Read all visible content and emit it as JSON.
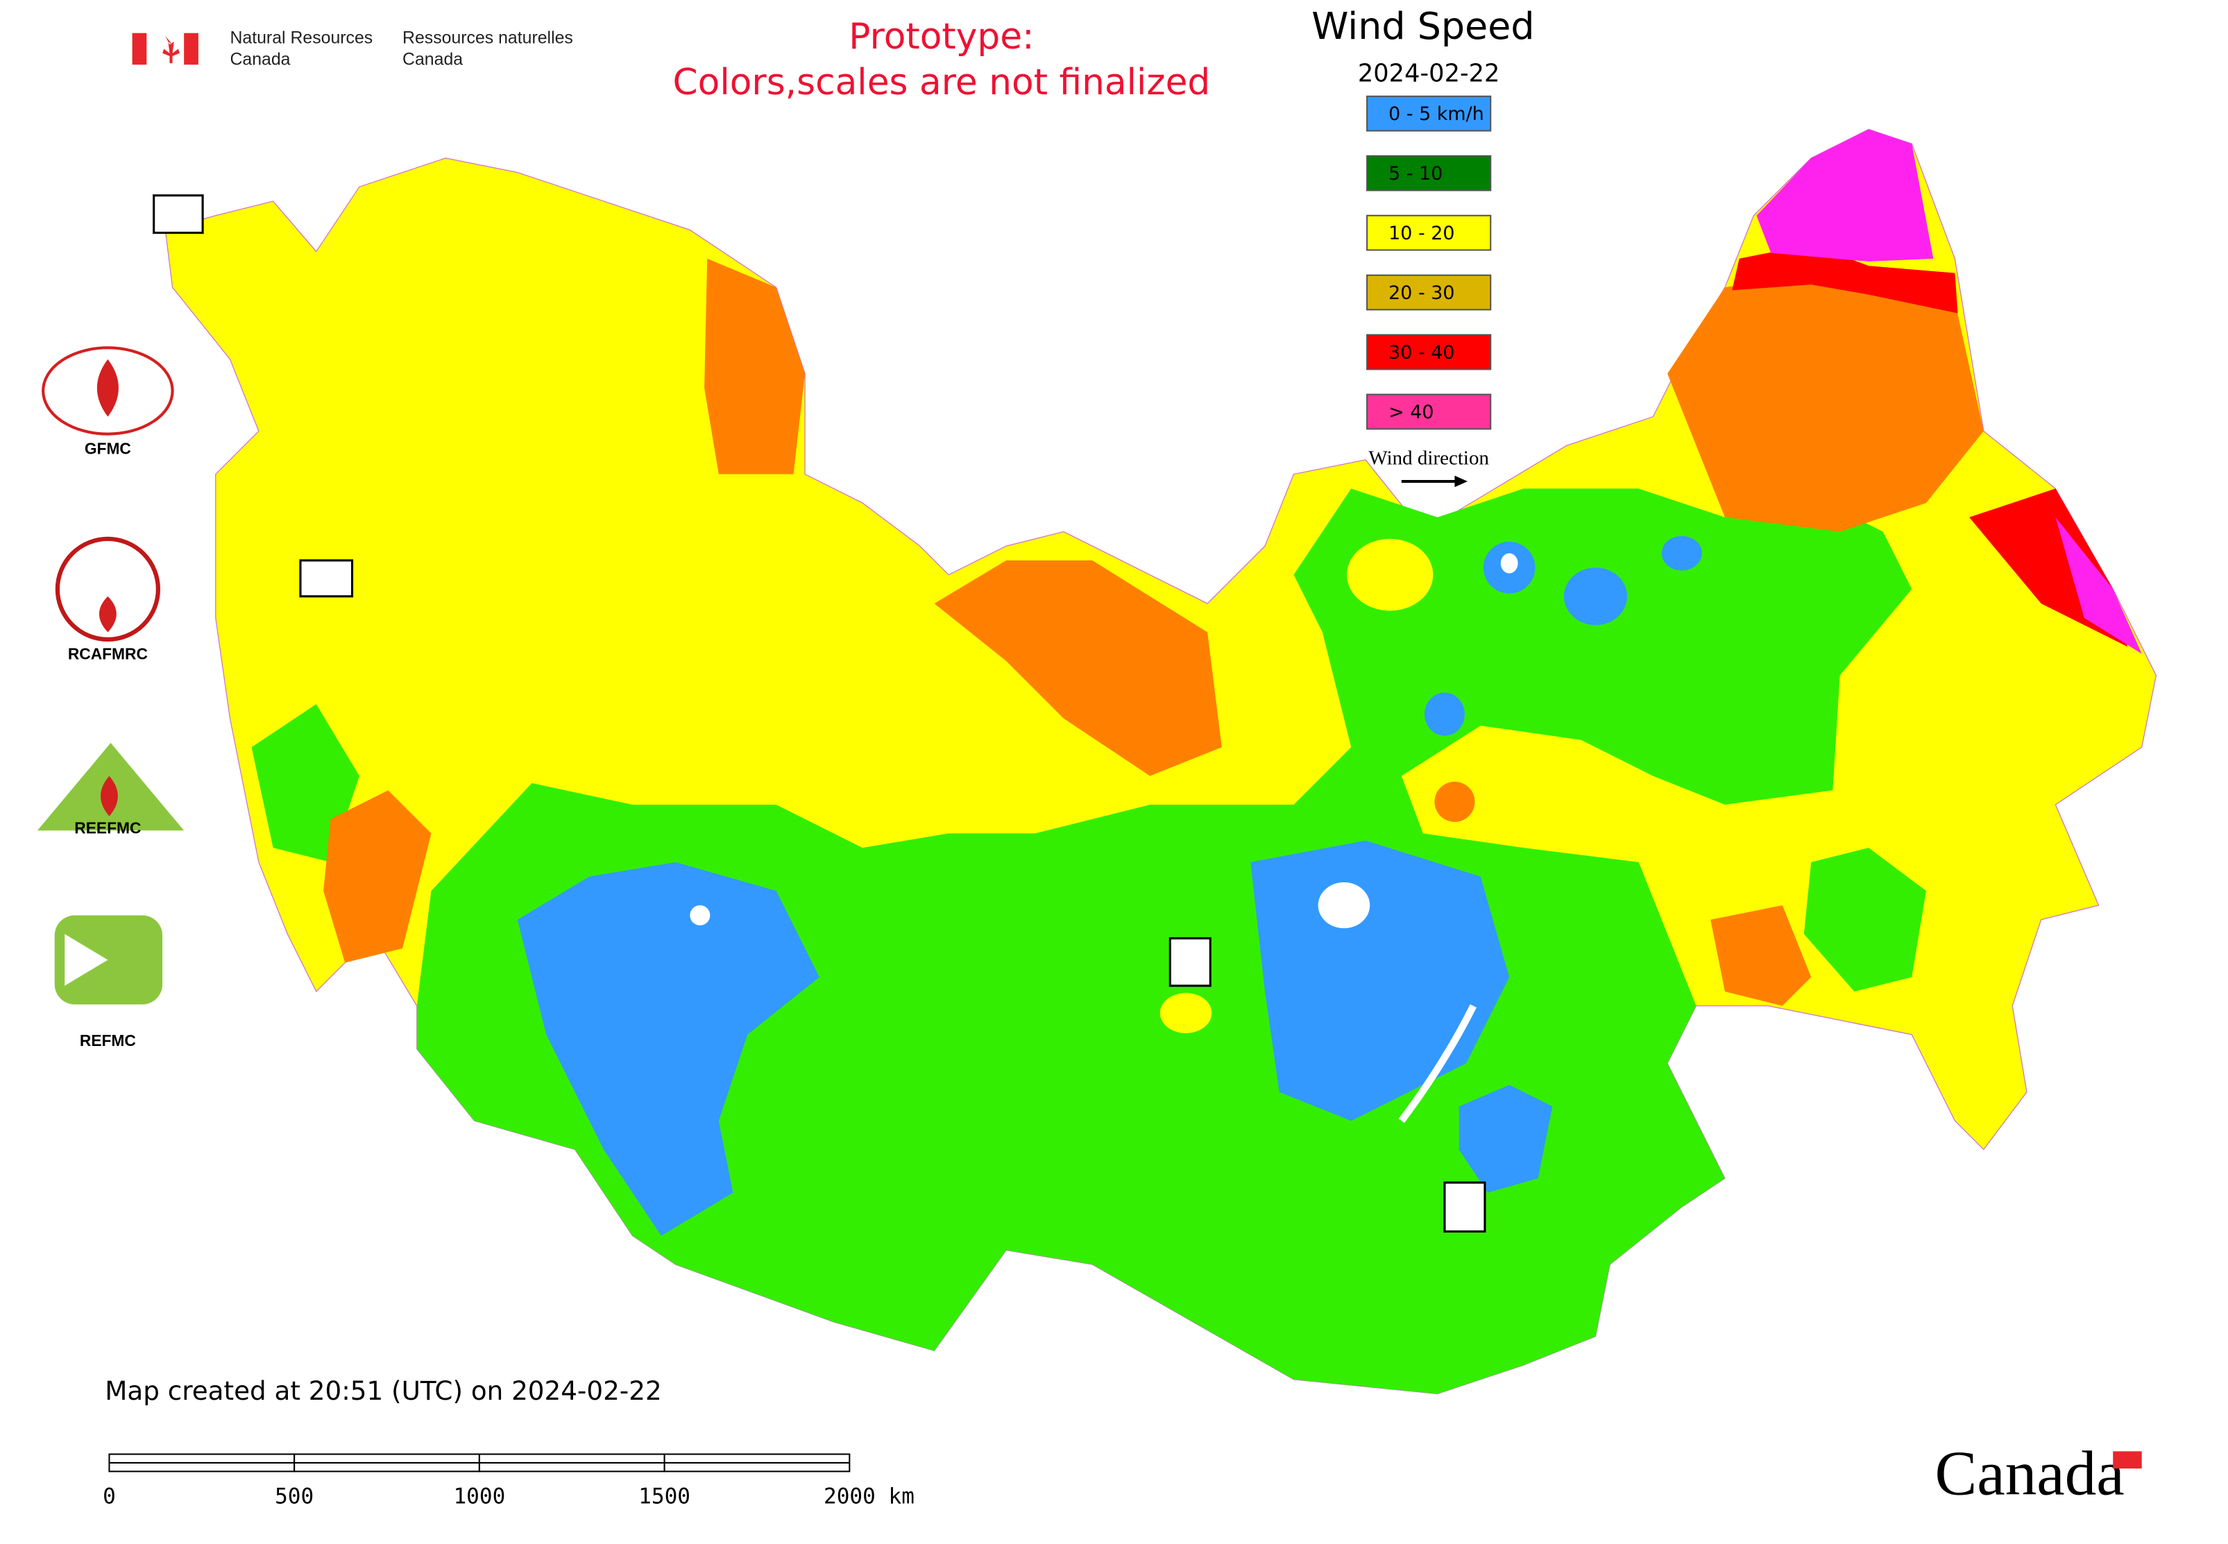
{
  "header": {
    "agency_en": [
      "Natural Resources",
      "Canada"
    ],
    "agency_fr": [
      "Ressources naturelles",
      "Canada"
    ]
  },
  "notice": [
    "Prototype:",
    "Colors,scales are not finalized"
  ],
  "legend": {
    "title": "Wind Speed",
    "date": "2024-02-22",
    "items": [
      {
        "label": "0 - 5 km/h",
        "color": "#3399ff"
      },
      {
        "label": "5 - 10",
        "color": "#008000"
      },
      {
        "label": "10 - 20",
        "color": "#ffff00"
      },
      {
        "label": "20 - 30",
        "color": "#dbb400"
      },
      {
        "label": "30 - 40",
        "color": "#ff0000"
      },
      {
        "label": "> 40",
        "color": "#ff3399"
      }
    ],
    "wind_direction": "Wind direction"
  },
  "logos": [
    "GFMC",
    "RCAFMRC",
    "REEFMC",
    "REFMC"
  ],
  "footer": {
    "created": "Map created at 20:51 (UTC) on 2024-02-22",
    "scale_labels": [
      "0",
      "500",
      "1000",
      "1500",
      "2000 km"
    ],
    "wordmark": "Canada"
  }
}
